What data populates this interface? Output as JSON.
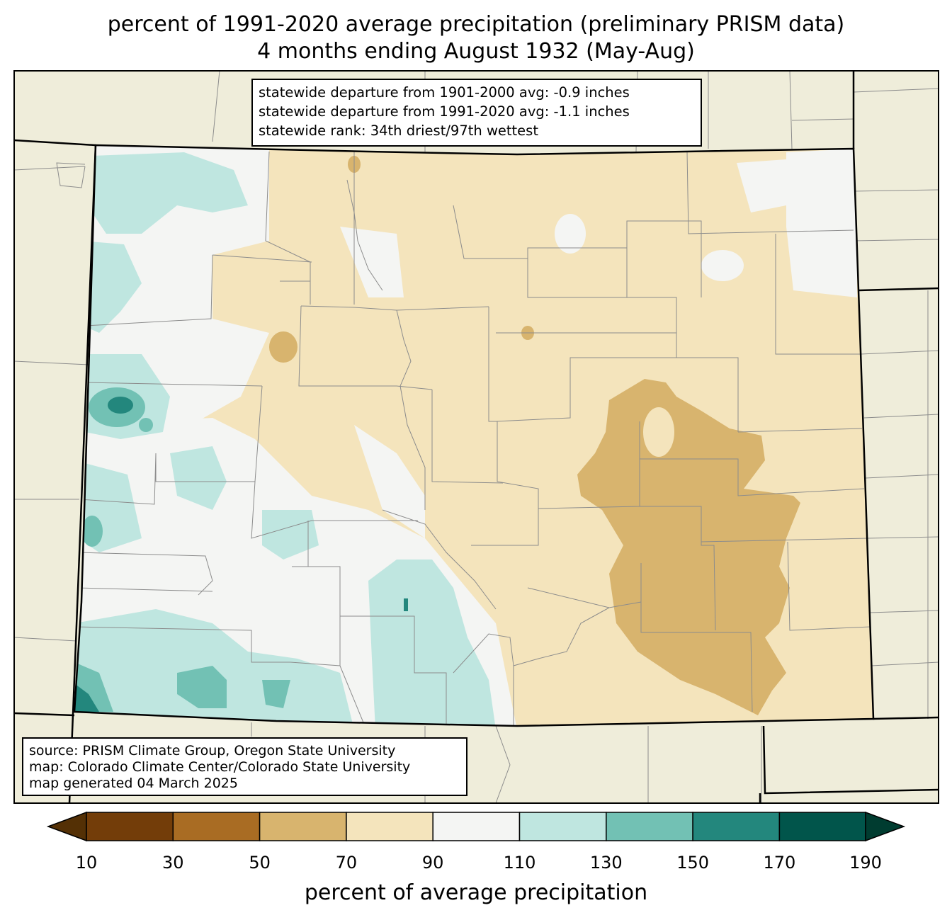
{
  "title": {
    "line1": "percent of 1991-2020 average precipitation (preliminary PRISM data)",
    "line2": "4 months ending August 1932 (May-Aug)"
  },
  "stats": {
    "line1": "statewide departure from 1901-2000 avg: -0.9 inches",
    "line2": "statewide departure from 1991-2020 avg: -1.1 inches",
    "line3": "statewide rank: 34th driest/97th wettest"
  },
  "source": {
    "line1": "source: PRISM Climate Group, Oregon State University",
    "line2": "map: Colorado Climate Center/Colorado State University",
    "line3": "map generated 04 March 2025"
  },
  "colorbar": {
    "label": "percent of average precipitation",
    "ticks": [
      "10",
      "30",
      "50",
      "70",
      "90",
      "110",
      "130",
      "150",
      "170",
      "190"
    ],
    "under_color": "#543005",
    "over_color": "#003c30",
    "bins": [
      "#733d09",
      "#a96c23",
      "#d8b46e",
      "#f4e4bc",
      "#f4f5f3",
      "#bfe6e0",
      "#72c1b4",
      "#23877d",
      "#01554b"
    ]
  },
  "map": {
    "land_color": "#efedda",
    "region": "Colorado"
  }
}
